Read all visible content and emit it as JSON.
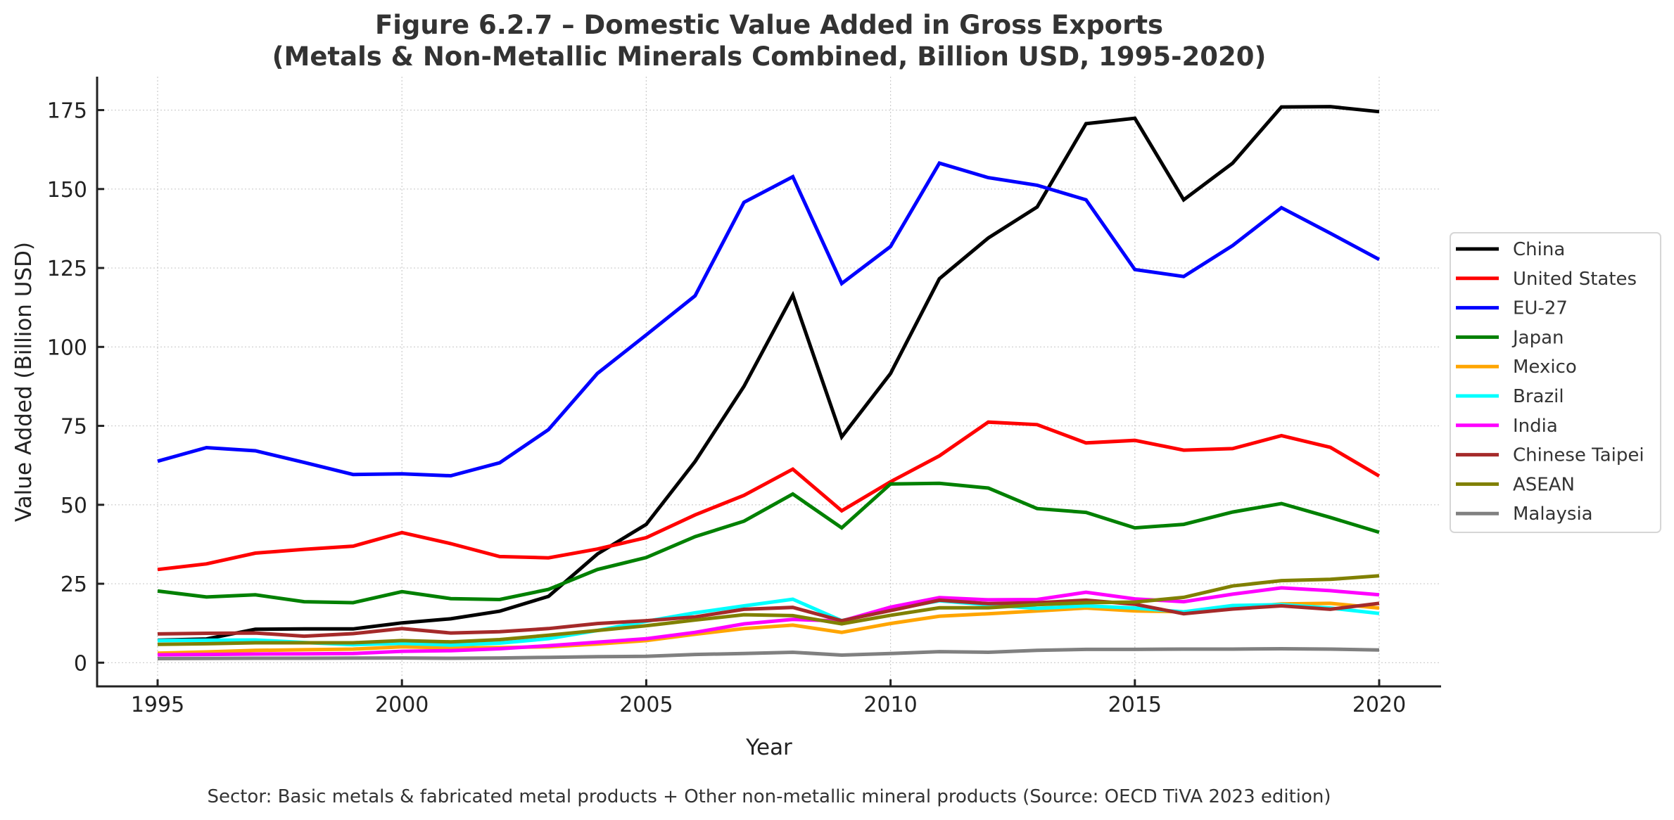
{
  "chart_data": {
    "type": "line",
    "title": "Figure 6.2.7 – Domestic Value Added in Gross Exports",
    "subtitle": "(Metals & Non-Metallic Minerals Combined, Billion USD, 1995-2020)",
    "xlabel": "Year",
    "ylabel": "Value Added (Billion USD)",
    "footer": "Sector: Basic metals & fabricated metal products + Other non-metallic mineral products (Source: OECD TiVA 2023 edition)",
    "xlim": [
      1994,
      2021.2
    ],
    "ylim": [
      -7,
      185
    ],
    "x_ticks": [
      1995,
      2000,
      2005,
      2010,
      2015,
      2020
    ],
    "x_tick_labels": [
      "1995",
      "2000",
      "2005",
      "2010",
      "2015",
      "2020"
    ],
    "y_ticks": [
      0,
      25,
      50,
      75,
      100,
      125,
      150,
      175
    ],
    "y_tick_labels": [
      "0",
      "25",
      "50",
      "75",
      "100",
      "125",
      "150",
      "175"
    ],
    "grid": true,
    "legend_position": "right",
    "x": [
      1995,
      1996,
      1997,
      1998,
      1999,
      2000,
      2001,
      2002,
      2003,
      2004,
      2005,
      2006,
      2007,
      2008,
      2009,
      2010,
      2011,
      2012,
      2013,
      2014,
      2015,
      2016,
      2017,
      2018,
      2019,
      2020
    ],
    "series": [
      {
        "name": "China",
        "color": "#000000",
        "values": [
          7.1,
          7.5,
          10.6,
          10.7,
          10.7,
          12.6,
          13.9,
          16.3,
          21.0,
          34.4,
          43.8,
          63.7,
          87.5,
          116.4,
          71.5,
          91.6,
          121.6,
          134.5,
          144.3,
          170.7,
          172.4,
          146.6,
          158.2,
          176.0,
          176.1,
          174.5
        ]
      },
      {
        "name": "United States",
        "color": "#ff0000",
        "values": [
          29.5,
          31.3,
          34.7,
          35.9,
          36.9,
          41.2,
          37.7,
          33.6,
          33.2,
          36.0,
          39.6,
          46.8,
          53.0,
          61.3,
          48.1,
          57.3,
          65.5,
          76.2,
          75.4,
          69.6,
          70.4,
          67.3,
          67.8,
          71.9,
          68.2,
          59.1
        ]
      },
      {
        "name": "EU-27",
        "color": "#0000ff",
        "values": [
          63.8,
          68.1,
          67.1,
          63.4,
          59.6,
          59.8,
          59.2,
          63.3,
          73.8,
          91.6,
          103.8,
          116.2,
          145.8,
          153.9,
          120.1,
          131.8,
          158.2,
          153.6,
          151.2,
          146.6,
          124.5,
          122.3,
          132.1,
          144.1,
          136.0,
          127.7
        ]
      },
      {
        "name": "Japan",
        "color": "#008000",
        "values": [
          22.7,
          20.8,
          21.5,
          19.3,
          19.0,
          22.5,
          20.3,
          20.0,
          23.2,
          29.5,
          33.3,
          39.9,
          44.8,
          53.4,
          42.7,
          56.6,
          56.8,
          55.3,
          48.8,
          47.6,
          42.7,
          43.8,
          47.7,
          50.4,
          46.0,
          41.3
        ]
      },
      {
        "name": "Mexico",
        "color": "#ffa500",
        "values": [
          3.0,
          3.4,
          3.9,
          4.1,
          4.3,
          5.0,
          4.7,
          4.8,
          5.0,
          5.9,
          7.0,
          9.0,
          10.8,
          11.9,
          9.6,
          12.4,
          14.7,
          15.5,
          16.4,
          17.3,
          16.4,
          16.1,
          17.3,
          18.6,
          18.8,
          17.3
        ]
      },
      {
        "name": "Brazil",
        "color": "#00ffff",
        "values": [
          7.0,
          7.1,
          7.2,
          6.4,
          5.7,
          6.1,
          5.6,
          6.2,
          7.6,
          10.2,
          13.1,
          15.8,
          18.0,
          20.1,
          13.3,
          16.8,
          19.6,
          18.3,
          17.2,
          18.0,
          17.3,
          16.1,
          18.1,
          18.4,
          17.3,
          15.6
        ]
      },
      {
        "name": "India",
        "color": "#ff00ff",
        "values": [
          2.5,
          2.6,
          2.75,
          2.8,
          2.9,
          3.6,
          3.8,
          4.4,
          5.4,
          6.5,
          7.6,
          9.6,
          12.3,
          13.7,
          13.2,
          17.6,
          20.6,
          19.9,
          20.0,
          22.3,
          20.2,
          19.3,
          21.7,
          23.7,
          22.8,
          21.5
        ]
      },
      {
        "name": "Chinese Taipei",
        "color": "#a52a2a",
        "values": [
          9.1,
          9.3,
          9.4,
          8.4,
          9.2,
          10.8,
          9.4,
          9.8,
          10.8,
          12.4,
          13.3,
          14.5,
          16.9,
          17.5,
          13.3,
          16.5,
          19.8,
          18.7,
          19.0,
          19.8,
          18.5,
          15.5,
          17.0,
          18.0,
          16.9,
          18.8
        ]
      },
      {
        "name": "ASEAN",
        "color": "#808000",
        "values": [
          5.8,
          6.0,
          6.3,
          6.3,
          6.3,
          7.0,
          6.6,
          7.3,
          8.7,
          10.2,
          11.7,
          13.5,
          15.2,
          14.9,
          12.3,
          15.0,
          17.4,
          17.4,
          18.4,
          19.0,
          19.2,
          20.7,
          24.3,
          26.0,
          26.4,
          27.5
        ]
      },
      {
        "name": "Malaysia",
        "color": "#808080",
        "values": [
          1.3,
          1.35,
          1.4,
          1.4,
          1.45,
          1.5,
          1.4,
          1.5,
          1.7,
          1.9,
          2.0,
          2.6,
          2.9,
          3.3,
          2.4,
          2.9,
          3.5,
          3.3,
          3.9,
          4.2,
          4.2,
          4.3,
          4.3,
          4.4,
          4.3,
          4.0
        ]
      }
    ]
  }
}
